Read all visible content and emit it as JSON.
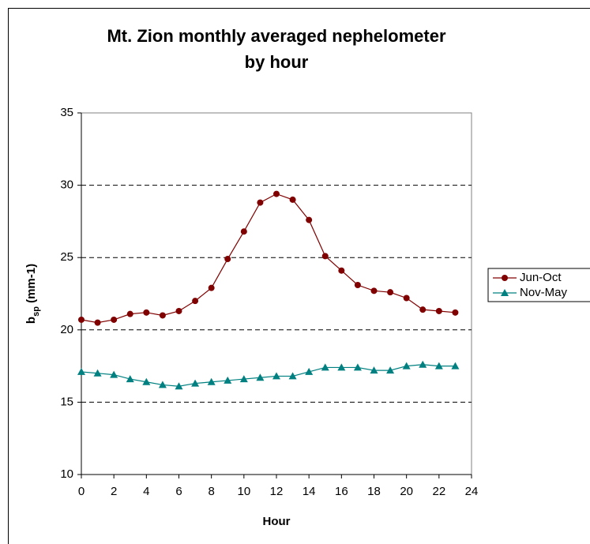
{
  "chart_data": {
    "type": "line",
    "title": [
      "Mt. Zion monthly averaged nephelometer",
      "by hour"
    ],
    "x_label": "Hour",
    "y_label": [
      "b",
      "sp",
      " (mm-1)"
    ],
    "x": [
      0,
      1,
      2,
      3,
      4,
      5,
      6,
      7,
      8,
      9,
      10,
      11,
      12,
      13,
      14,
      15,
      16,
      17,
      18,
      19,
      20,
      21,
      22,
      23
    ],
    "series": [
      {
        "name": "Jun-Oct",
        "color": "#800000",
        "marker": "circle",
        "values": [
          20.7,
          20.5,
          20.7,
          21.1,
          21.2,
          21.0,
          21.3,
          22.0,
          22.9,
          24.9,
          26.8,
          28.8,
          29.4,
          29.0,
          27.6,
          25.1,
          24.1,
          23.1,
          22.7,
          22.6,
          22.2,
          21.4,
          21.3,
          21.2
        ]
      },
      {
        "name": "Nov-May",
        "color": "#008080",
        "marker": "triangle",
        "values": [
          17.1,
          17.0,
          16.9,
          16.6,
          16.4,
          16.2,
          16.1,
          16.3,
          16.4,
          16.5,
          16.6,
          16.7,
          16.8,
          16.8,
          17.1,
          17.4,
          17.4,
          17.4,
          17.2,
          17.2,
          17.5,
          17.6,
          17.5,
          17.5
        ]
      }
    ],
    "xlim": [
      0,
      24
    ],
    "xticks": [
      0,
      2,
      4,
      6,
      8,
      10,
      12,
      14,
      16,
      18,
      20,
      22,
      24
    ],
    "ylim": [
      10,
      35
    ],
    "yticks": [
      10,
      15,
      20,
      25,
      30,
      35
    ],
    "grid": true,
    "legend": "right"
  }
}
